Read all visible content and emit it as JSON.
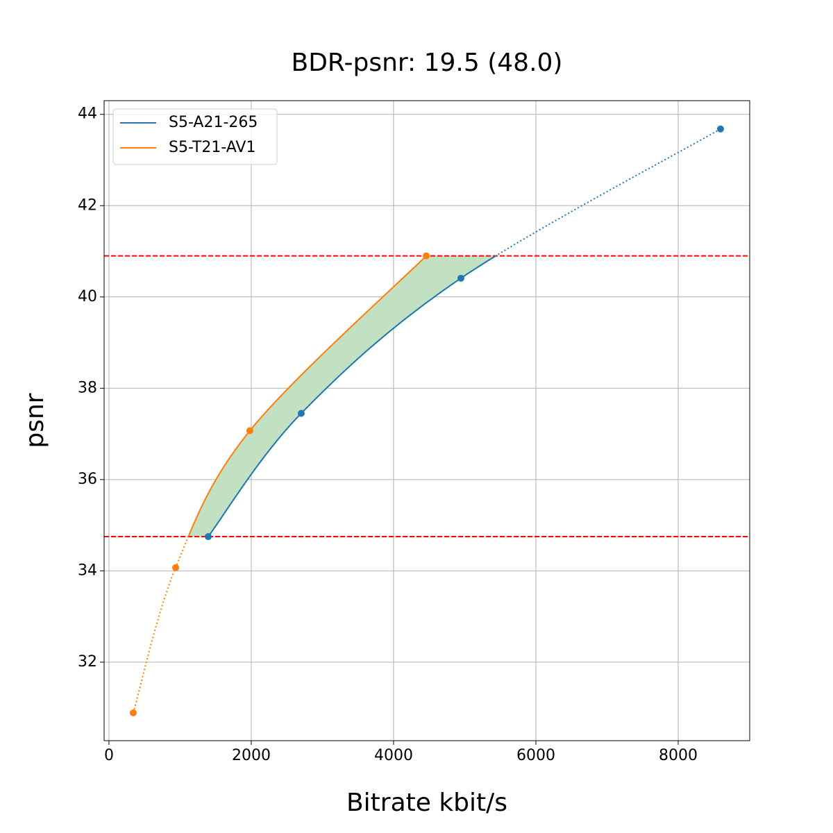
{
  "chart_data": {
    "type": "line",
    "title": "BDR-psnr: 19.5 (48.0)",
    "x_label": "Bitrate kbit/s",
    "y_label": "psnr",
    "series": [
      {
        "name": "S5-A21-265",
        "color": "#1f77b4",
        "x": [
          1395,
          2702,
          4946,
          8595
        ],
        "values": [
          34.75,
          37.45,
          40.41,
          43.68
        ]
      },
      {
        "name": "S5-T21-AV1",
        "color": "#ff7f0e",
        "x": [
          341,
          937,
          1980,
          4459
        ],
        "values": [
          30.89,
          34.07,
          37.07,
          40.9
        ]
      }
    ],
    "hlines": [
      34.75,
      40.9
    ],
    "hline_color": "#ff0000",
    "fill_color": "#c2e0c2",
    "xlim": [
      -68,
      9005
    ],
    "xticks": [
      0,
      2000,
      4000,
      6000,
      8000
    ],
    "ylim": [
      30.28,
      44.3
    ],
    "yticks": [
      32,
      34,
      36,
      38,
      40,
      42,
      44
    ],
    "grid": true,
    "legend": "upper left"
  }
}
